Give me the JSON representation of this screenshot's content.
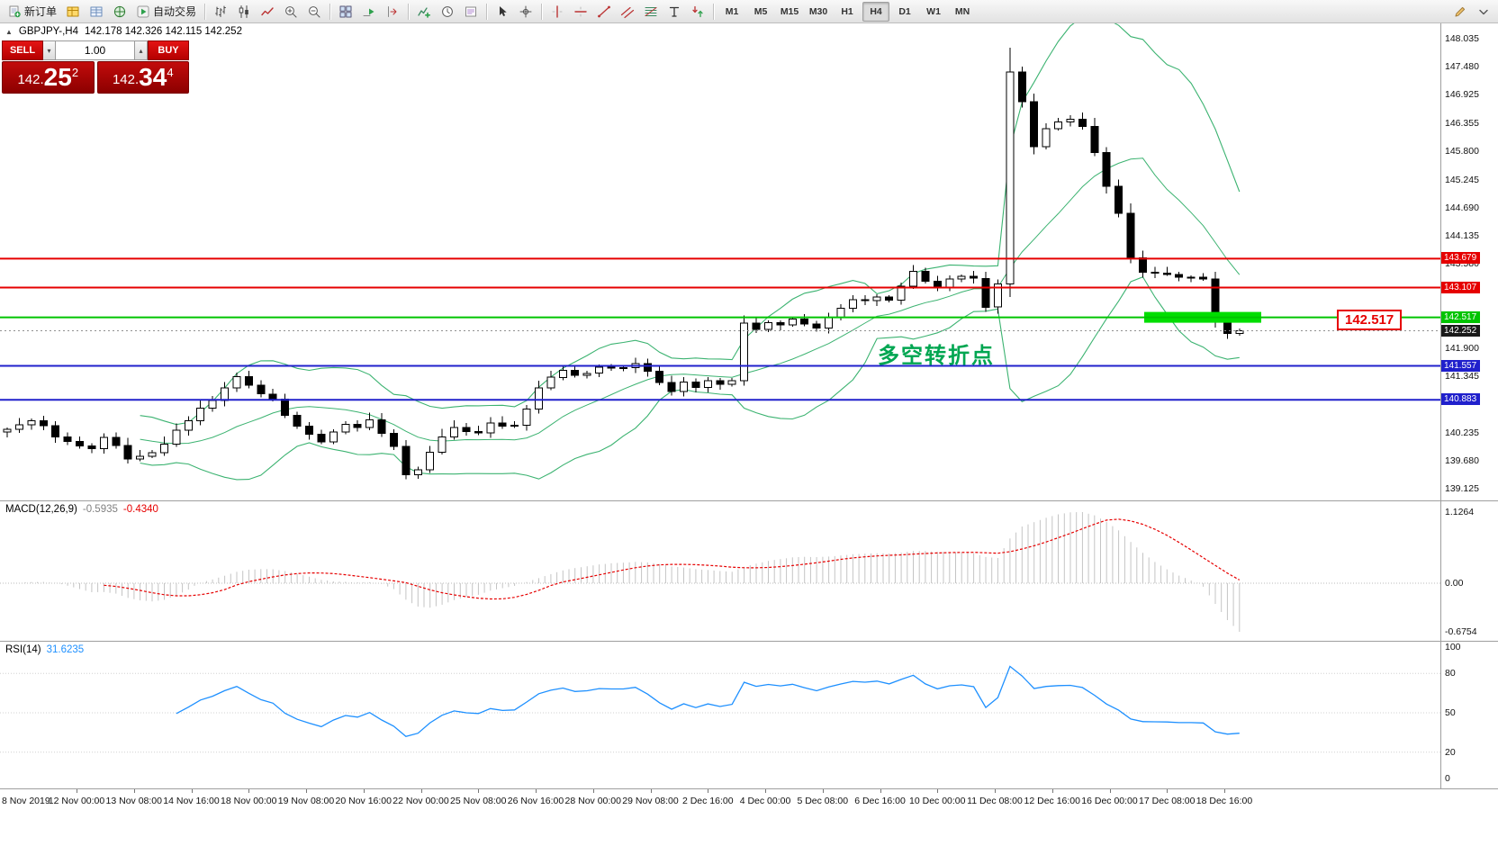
{
  "toolbar": {
    "items": [
      {
        "name": "new-order-button",
        "icon": "new-order-icon",
        "label": "新订单"
      },
      {
        "name": "market-watch-button",
        "icon": "market-watch-icon"
      },
      {
        "name": "data-window-button",
        "icon": "data-window-icon"
      },
      {
        "name": "navigator-button",
        "icon": "navigator-icon"
      },
      {
        "name": "autotrading-button",
        "icon": "autotrading-icon",
        "label": "自动交易"
      },
      {
        "sep": true
      },
      {
        "name": "bar-chart-button",
        "icon": "bar-chart-icon"
      },
      {
        "name": "candlestick-button",
        "icon": "candlestick-icon"
      },
      {
        "name": "line-chart-button",
        "icon": "line-chart-icon"
      },
      {
        "name": "zoom-in-button",
        "icon": "zoom-in-icon"
      },
      {
        "name": "zoom-out-button",
        "icon": "zoom-out-icon"
      },
      {
        "sep": true
      },
      {
        "name": "tile-windows-button",
        "icon": "tile-windows-icon"
      },
      {
        "name": "auto-scroll-button",
        "icon": "auto-scroll-icon"
      },
      {
        "name": "chart-shift-button",
        "icon": "chart-shift-icon"
      },
      {
        "sep": true
      },
      {
        "name": "indicators-button",
        "icon": "indicators-icon"
      },
      {
        "name": "periods-button",
        "icon": "periods-icon"
      },
      {
        "name": "templates-button",
        "icon": "templates-icon"
      },
      {
        "sep": true
      },
      {
        "name": "cursor-button",
        "icon": "cursor-icon"
      },
      {
        "name": "crosshair-button",
        "icon": "crosshair-icon"
      },
      {
        "sep": true
      },
      {
        "name": "vertical-line-button",
        "icon": "vline-icon"
      },
      {
        "name": "horizontal-line-button",
        "icon": "hline-icon"
      },
      {
        "name": "trendline-button",
        "icon": "trendline-icon"
      },
      {
        "name": "channel-button",
        "icon": "channel-icon"
      },
      {
        "name": "fibonacci-button",
        "icon": "fibonacci-icon"
      },
      {
        "name": "text-button",
        "icon": "text-icon"
      },
      {
        "name": "arrows-button",
        "icon": "arrows-icon"
      },
      {
        "sep": true
      }
    ],
    "timeframes": [
      "M1",
      "M5",
      "M15",
      "M30",
      "H1",
      "H4",
      "D1",
      "W1",
      "MN"
    ],
    "active_timeframe": "H4",
    "right_items": [
      {
        "name": "edit-chart-button",
        "icon": "pencil-icon"
      },
      {
        "name": "toolbar-more-button",
        "icon": "chevron-down-icon"
      }
    ]
  },
  "chart": {
    "symbol_title": "GBPJPY-,H4",
    "ohlc": "142.178 142.326 142.115 142.252",
    "trade_panel": {
      "sell_label": "SELL",
      "buy_label": "BUY",
      "volume": "1.00",
      "bid": {
        "prefix": "142.",
        "big": "25",
        "sup": "2"
      },
      "ask": {
        "prefix": "142.",
        "big": "34",
        "sup": "4"
      }
    },
    "annotation": {
      "text": "多空转折点",
      "color": "#00a651"
    },
    "callout": {
      "text": "142.517",
      "color": "#e60000"
    },
    "axis_labels": [
      148.035,
      147.48,
      146.925,
      146.355,
      145.8,
      145.245,
      144.69,
      144.135,
      143.58,
      141.9,
      141.345,
      140.235,
      139.68,
      139.125
    ],
    "hlines": [
      {
        "price": 143.679,
        "color": "#e60000",
        "tag": "143.679"
      },
      {
        "price": 143.107,
        "color": "#e60000",
        "tag": "143.107"
      },
      {
        "price": 142.517,
        "color": "#00c400",
        "tag": "142.517"
      },
      {
        "price": 141.557,
        "color": "#2020cc",
        "tag": "141.557"
      },
      {
        "price": 140.883,
        "color": "#2020cc",
        "tag": "140.883"
      }
    ],
    "bid_line": {
      "price": 142.252,
      "tag": "142.252",
      "tag_bg": "#1a1a1a"
    },
    "highlight_bar": {
      "price": 142.517,
      "color": "#00de00"
    }
  },
  "chart_data": {
    "type": "candlestick",
    "symbol": "GBPJPY-,H4",
    "ylim": [
      138.893,
      148.338
    ],
    "closes": [
      140.3,
      140.39,
      140.47,
      140.37,
      140.15,
      140.06,
      139.97,
      139.92,
      140.14,
      139.98,
      139.71,
      139.77,
      139.84,
      140.01,
      140.28,
      140.47,
      140.72,
      140.87,
      141.12,
      141.34,
      141.17,
      141.0,
      140.9,
      140.58,
      140.36,
      140.2,
      140.05,
      140.25,
      140.4,
      140.34,
      140.49,
      140.22,
      139.96,
      139.4,
      139.5,
      139.85,
      140.15,
      140.34,
      140.26,
      140.23,
      140.43,
      140.36,
      140.38,
      140.7,
      141.12,
      141.33,
      141.47,
      141.37,
      141.41,
      141.53,
      141.52,
      141.52,
      141.6,
      141.45,
      141.23,
      141.05,
      141.24,
      141.13,
      141.26,
      141.19,
      141.26,
      142.4,
      142.28,
      142.41,
      142.37,
      142.48,
      142.39,
      142.31,
      142.52,
      142.7,
      142.87,
      142.85,
      142.92,
      142.86,
      143.13,
      143.43,
      143.23,
      143.11,
      143.28,
      143.33,
      143.29,
      142.72,
      143.18,
      147.38,
      146.79,
      145.9,
      146.25,
      146.39,
      146.44,
      146.3,
      145.78,
      145.11,
      144.58,
      143.7,
      143.41,
      143.39,
      143.37,
      143.31,
      143.31,
      143.28,
      142.45,
      142.2,
      142.25
    ],
    "bollinger": {
      "period": 12,
      "deviation": 2,
      "color": "#3cb371"
    },
    "macd": {
      "label": "MACD(12,26,9)",
      "value1": "-0.5935",
      "value2": "-0.4340",
      "fast": 12,
      "slow": 26,
      "signal": 9,
      "axis": [
        "1.1264",
        "0.00",
        "-0.6754"
      ],
      "histogram_color": "#c4c4c4",
      "signal_color": "#e60000"
    },
    "rsi": {
      "label": "RSI(14)",
      "value": "31.6235",
      "period": 14,
      "levels": [
        80,
        50,
        20
      ],
      "axis": [
        "100",
        "80",
        "50",
        "20",
        "0"
      ],
      "line_color": "#1e90ff"
    },
    "x_axis_dates": [
      "8 Nov 2019",
      "12 Nov 00:00",
      "13 Nov 08:00",
      "14 Nov 16:00",
      "18 Nov 00:00",
      "19 Nov 08:00",
      "20 Nov 16:00",
      "22 Nov 00:00",
      "25 Nov 08:00",
      "26 Nov 16:00",
      "28 Nov 00:00",
      "29 Nov 08:00",
      "2 Dec 16:00",
      "4 Dec 00:00",
      "5 Dec 08:00",
      "6 Dec 16:00",
      "10 Dec 00:00",
      "11 Dec 08:00",
      "12 Dec 16:00",
      "16 Dec 00:00",
      "17 Dec 08:00",
      "18 Dec 16:00"
    ]
  }
}
